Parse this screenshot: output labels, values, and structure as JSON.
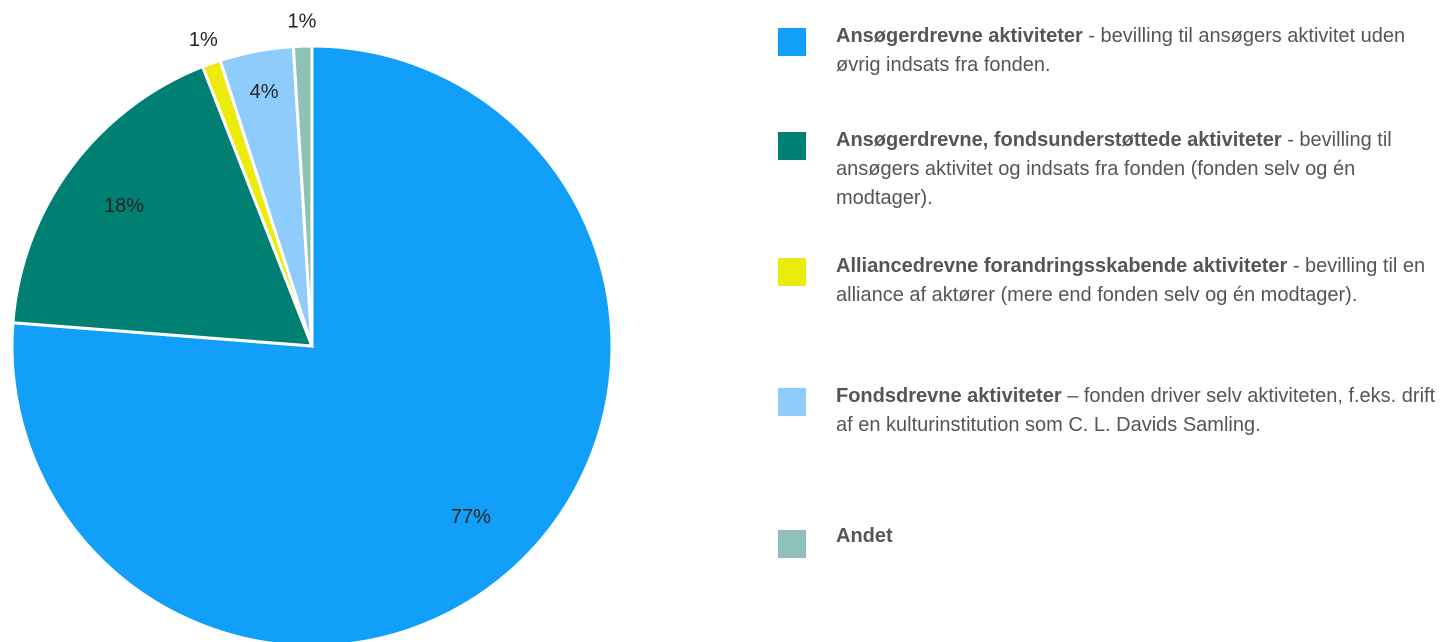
{
  "chart_data": {
    "type": "pie",
    "categories": [
      "Ansøgerdrevne aktiviteter",
      "Ansøgerdrevne, fondsunderstøttede aktiviteter",
      "Alliancedrevne forandringsskabende aktiviteter",
      "Fondsdrevne aktiviteter",
      "Andet"
    ],
    "descriptions": [
      "- bevilling til ansøgers aktivitet uden øvrig indsats fra fonden.",
      "- bevilling til ansøgers aktivitet og indsats fra fonden (fonden selv og én modtager).",
      "- bevilling til en alliance af aktører (mere end fonden selv og én modtager).",
      "– fonden driver selv aktiviteten, f.eks. drift af en kulturinstitution som C. L. Davids Samling.",
      null
    ],
    "values": [
      77,
      18,
      1,
      4,
      1
    ],
    "value_labels": [
      "77%",
      "18%",
      "1%",
      "4%",
      "1%"
    ],
    "colors": [
      "#129ffa",
      "#008073",
      "#ebeb0c",
      "#8fcbfb",
      "#8fc1bb"
    ],
    "legend": "right"
  }
}
